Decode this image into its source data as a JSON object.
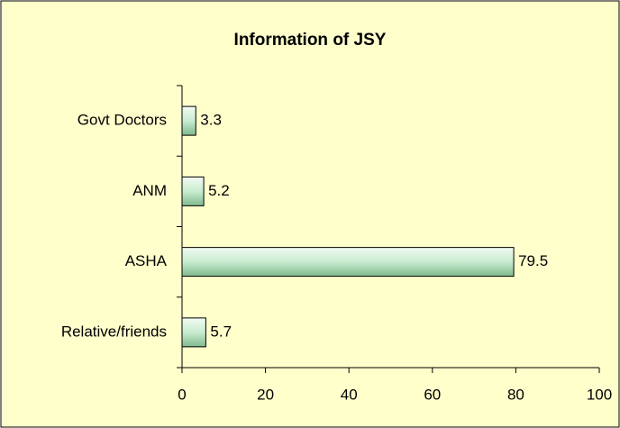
{
  "chart_data": {
    "type": "bar",
    "orientation": "horizontal",
    "title": "Information of JSY",
    "categories": [
      "Govt Doctors",
      "ANM",
      "ASHA",
      "Relative/friends"
    ],
    "values": [
      3.3,
      5.2,
      79.5,
      5.7
    ],
    "color": "#c8ecd0",
    "xlim": [
      0,
      100
    ],
    "xticks": [
      0,
      20,
      40,
      60,
      80,
      100
    ],
    "grid": false
  }
}
